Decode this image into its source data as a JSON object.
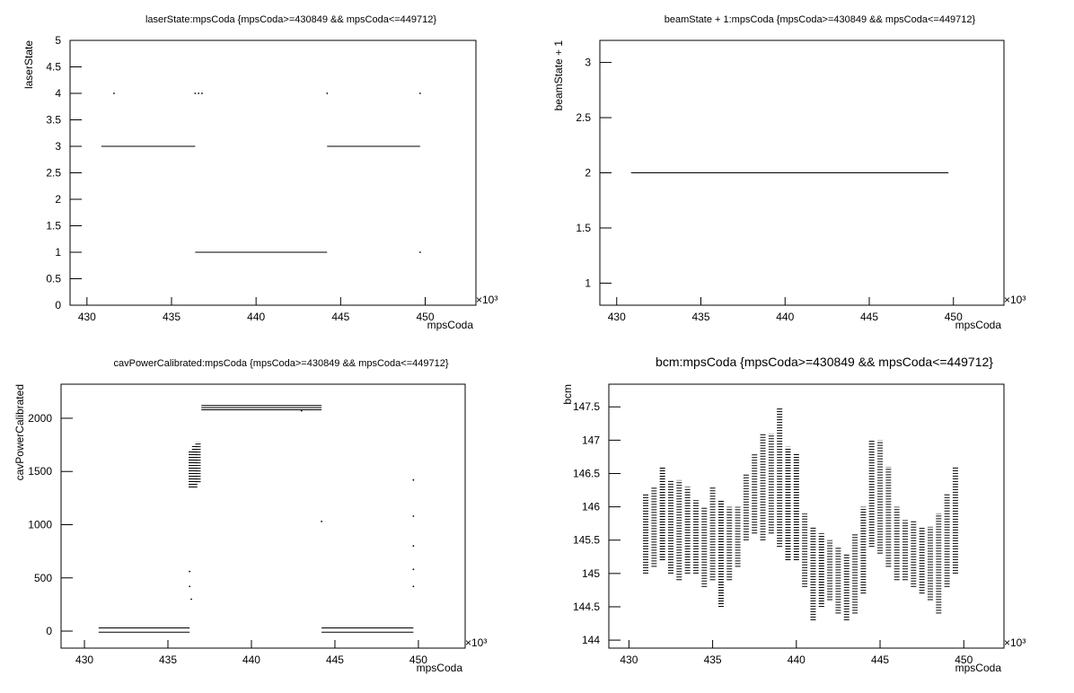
{
  "chart_data": [
    {
      "type": "scatter",
      "title": "laserState:mpsCoda {mpsCoda>=430849 && mpsCoda<=449712}",
      "x_label": "mpsCoda",
      "y_label": "laserState",
      "x_exponent": "×10³",
      "xlim": [
        429,
        453
      ],
      "xticks": [
        430,
        435,
        440,
        445,
        450
      ],
      "ylim": [
        0,
        5
      ],
      "yticks": [
        0,
        0.5,
        1,
        1.5,
        2,
        2.5,
        3,
        3.5,
        4,
        4.5,
        5
      ],
      "color": "#000000",
      "series": [
        {
          "style": "line",
          "x": [
            430.85,
            436.4
          ],
          "values": [
            3,
            3
          ]
        },
        {
          "style": "line",
          "x": [
            436.4,
            444.2
          ],
          "values": [
            1,
            1
          ]
        },
        {
          "style": "line",
          "x": [
            444.2,
            449.7
          ],
          "values": [
            3,
            3
          ]
        },
        {
          "style": "points",
          "x": [
            431.6,
            436.4,
            436.6,
            436.8,
            444.2,
            449.7,
            449.7
          ],
          "values": [
            4,
            4,
            4,
            4,
            4,
            4,
            1
          ]
        }
      ]
    },
    {
      "type": "scatter",
      "title": "beamState + 1:mpsCoda {mpsCoda>=430849 && mpsCoda<=449712}",
      "x_label": "mpsCoda",
      "y_label": "beamState + 1",
      "x_exponent": "×10³",
      "xlim": [
        429,
        453
      ],
      "xticks": [
        430,
        435,
        440,
        445,
        450
      ],
      "ylim": [
        0.8,
        3.2
      ],
      "yticks": [
        1,
        1.5,
        2,
        2.5,
        3
      ],
      "color": "#000000",
      "series": [
        {
          "style": "line",
          "x": [
            430.85,
            449.7
          ],
          "values": [
            2,
            2
          ]
        }
      ]
    },
    {
      "type": "scatter",
      "title": "cavPowerCalibrated:mpsCoda {mpsCoda>=430849 && mpsCoda<=449712}",
      "x_label": "mpsCoda",
      "y_label": "cavPowerCalibrated",
      "x_exponent": "×10³",
      "xlim": [
        428.6,
        452.8
      ],
      "xticks": [
        430,
        435,
        440,
        445,
        450
      ],
      "ylim": [
        -160,
        2320
      ],
      "yticks": [
        0,
        500,
        1000,
        1500,
        2000
      ],
      "color": "#000000",
      "series": [
        {
          "style": "line",
          "x": [
            430.85,
            436.3
          ],
          "values": [
            30,
            30
          ]
        },
        {
          "style": "line",
          "x": [
            430.85,
            436.3
          ],
          "values": [
            -10,
            -10
          ]
        },
        {
          "style": "line",
          "x": [
            437,
            444.2
          ],
          "values": [
            2120,
            2120
          ]
        },
        {
          "style": "line",
          "x": [
            437,
            444.2
          ],
          "values": [
            2100,
            2100
          ]
        },
        {
          "style": "line",
          "x": [
            437,
            444.2
          ],
          "values": [
            2080,
            2080
          ]
        },
        {
          "style": "line",
          "x": [
            444.2,
            449.7
          ],
          "values": [
            30,
            30
          ]
        },
        {
          "style": "line",
          "x": [
            444.2,
            449.7
          ],
          "values": [
            -10,
            -10
          ]
        },
        {
          "style": "range",
          "x": [
            436.4,
            436.6,
            436.8
          ],
          "low": [
            1350,
            1350,
            1400
          ],
          "high": [
            1700,
            1750,
            1780
          ]
        },
        {
          "style": "points",
          "x": [
            436.3,
            436.3,
            436.4,
            444.2,
            449.7,
            449.7,
            449.7,
            449.7,
            449.7,
            443
          ],
          "values": [
            560,
            420,
            300,
            1030,
            1420,
            1080,
            800,
            580,
            420,
            2070
          ]
        }
      ]
    },
    {
      "type": "scatter",
      "title": "bcm:mpsCoda {mpsCoda>=430849 && mpsCoda<=449712}",
      "x_label": "mpsCoda",
      "y_label": "bcm",
      "x_exponent": "×10³",
      "xlim": [
        428.8,
        452.4
      ],
      "xticks": [
        430,
        435,
        440,
        445,
        450
      ],
      "ylim": [
        143.88,
        147.84
      ],
      "yticks": [
        144,
        144.5,
        145,
        145.5,
        146,
        146.5,
        147,
        147.5
      ],
      "color": "#000000",
      "series": [
        {
          "style": "range",
          "x": [
            431,
            431.5,
            432,
            432.5,
            433,
            433.5,
            434,
            434.5,
            435,
            435.5,
            436,
            436.5,
            437,
            437.5,
            438,
            438.5,
            439,
            439.5,
            440,
            440.5,
            441,
            441.5,
            442,
            442.5,
            443,
            443.5,
            444,
            444.5,
            445,
            445.5,
            446,
            446.5,
            447,
            447.5,
            448,
            448.5,
            449,
            449.5
          ],
          "low": [
            145.0,
            145.1,
            145.2,
            145.0,
            144.9,
            145.0,
            145.0,
            144.8,
            144.9,
            144.5,
            144.9,
            145.1,
            145.5,
            145.6,
            145.5,
            145.6,
            145.4,
            145.2,
            145.2,
            144.8,
            144.3,
            144.5,
            144.6,
            144.4,
            144.3,
            144.4,
            144.7,
            145.4,
            145.3,
            145.1,
            144.9,
            144.9,
            144.8,
            144.7,
            144.6,
            144.4,
            144.8,
            145.0
          ],
          "high": [
            146.2,
            146.3,
            146.6,
            146.4,
            146.4,
            146.3,
            146.1,
            146.0,
            146.3,
            146.1,
            146.0,
            146.0,
            146.5,
            146.8,
            147.1,
            147.1,
            147.5,
            146.9,
            146.8,
            145.9,
            145.7,
            145.6,
            145.5,
            145.4,
            145.3,
            145.6,
            146.0,
            147.0,
            147.0,
            146.6,
            146.0,
            145.8,
            145.8,
            145.7,
            145.7,
            145.9,
            146.2,
            146.6
          ]
        }
      ]
    }
  ]
}
